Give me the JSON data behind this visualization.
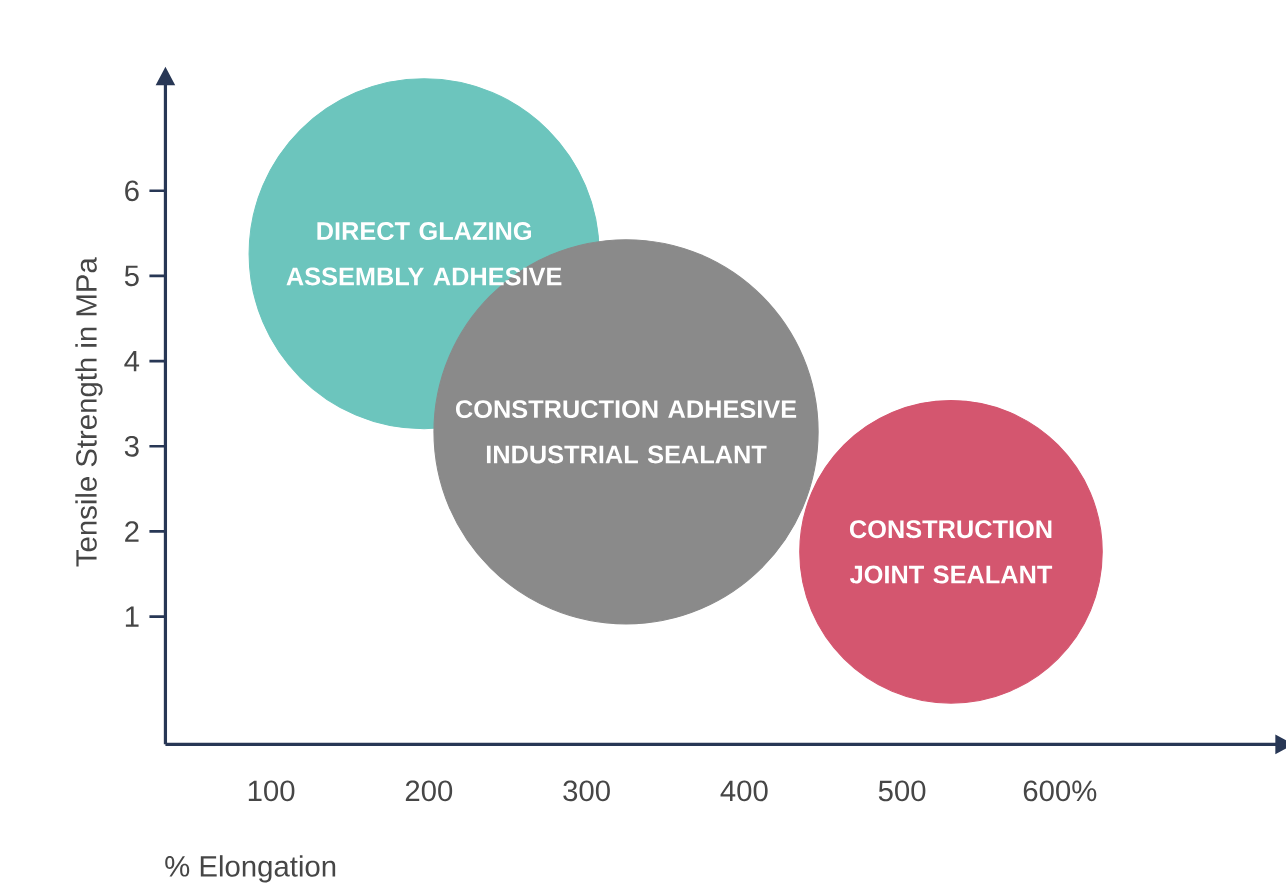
{
  "chart_data": {
    "type": "bubble",
    "xlabel": "% Elongation",
    "ylabel": "Tensile Strength in MPa",
    "xlim": [
      33,
      740
    ],
    "ylim": [
      -0.5,
      7.3
    ],
    "xticks": [
      100,
      200,
      300,
      400,
      500,
      {
        "value": 600,
        "label": "600%"
      }
    ],
    "yticks": [
      1,
      2,
      3,
      4,
      5,
      6
    ],
    "grid": false,
    "series": [
      {
        "color": "#6cc5bd",
        "x": [
          197
        ],
        "values": [
          5.26
        ],
        "sizes": [
          0.83
        ]
      },
      {
        "color": "#8a8a8a",
        "x": [
          325
        ],
        "values": [
          3.17
        ],
        "sizes": [
          1
        ]
      },
      {
        "color": "#d4566f",
        "x": [
          531
        ],
        "values": [
          1.76
        ],
        "sizes": [
          0.62
        ]
      }
    ],
    "annotations": [
      {
        "text": "DIRECT GLAZING ASSEMBLY ADHESIVE",
        "x": 197,
        "y": 5.26
      },
      {
        "text": "CONSTRUCTION  ADHESIVE INDUSTRIAL SEALANT",
        "x": 325,
        "y": 3.17
      },
      {
        "text": "CONSTRUCTION JOINT SEALANT",
        "x": 531,
        "y": 1.76
      }
    ]
  }
}
